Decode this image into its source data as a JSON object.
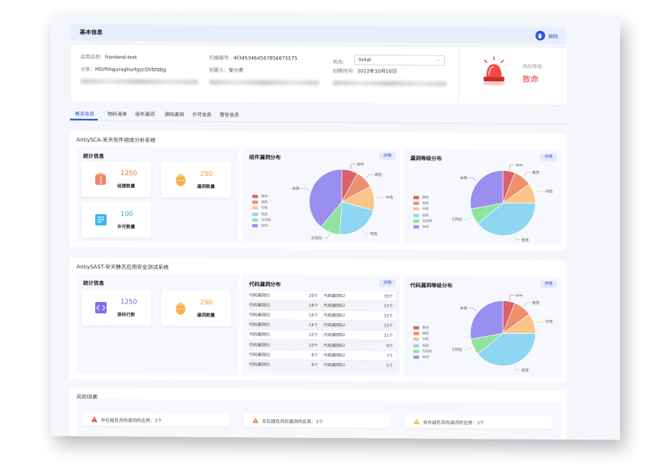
{
  "header": {
    "title": "基本信息",
    "delete_label": "删除"
  },
  "info": {
    "app_name_label": "应用名称:",
    "app_name": "frontend-test",
    "scan_id_label": "扫描编号:",
    "scan_id": "4f3453464567856875575",
    "status_label": "状态:",
    "status_value": "Inital",
    "branch_label": "分支:",
    "branch": "HD/fhhguraghurtgzcDVbfdbg",
    "creator_label": "创建人:",
    "creator": "安小虎",
    "created_at_label": "创建时间:",
    "created_at": "2022年10月10日",
    "risk_level_label": "风险等级:",
    "risk_level": "致命"
  },
  "tabs": [
    {
      "label": "概览信息",
      "active": true
    },
    {
      "label": "物料清单"
    },
    {
      "label": "组件漏洞"
    },
    {
      "label": "源码漏洞"
    },
    {
      "label": "许可信息"
    },
    {
      "label": "警告信息"
    }
  ],
  "sca": {
    "title": "AntiySCA-安天软件组成分析系统",
    "stats_title": "统计信息",
    "stats": [
      {
        "value": "1250",
        "label": "组建数量",
        "color": "#f5683e",
        "icon": "package-icon"
      },
      {
        "value": "290",
        "label": "漏洞数量",
        "color": "#f49a2b",
        "icon": "bug-icon"
      },
      {
        "value": "100",
        "label": "许可数量",
        "color": "#21a6e0",
        "icon": "license-icon"
      }
    ],
    "component_chart_title": "组件漏洞分布",
    "level_chart_title": "漏洞等级分布",
    "detail_label": "详情"
  },
  "sast": {
    "title": "AntiySAST-安天静态应用安全测试系统",
    "stats_title": "统计信息",
    "stats": [
      {
        "value": "1250",
        "label": "源码行数",
        "color": "#6a5ce6",
        "icon": "code-icon"
      },
      {
        "value": "290",
        "label": "漏洞数量",
        "color": "#f49a2b",
        "icon": "bug-icon"
      }
    ],
    "code_table_title": "代码漏洞分布",
    "level_chart_title": "代码漏洞等级分布",
    "detail_label": "详情",
    "table_left": [
      {
        "name": "代码漏洞01",
        "count": "20个"
      },
      {
        "name": "代码漏洞01",
        "count": "18个"
      },
      {
        "name": "代码漏洞01",
        "count": "16个"
      },
      {
        "name": "代码漏洞01",
        "count": "14个"
      },
      {
        "name": "代码漏洞01",
        "count": "12个"
      },
      {
        "name": "代码漏洞01",
        "count": "10个"
      },
      {
        "name": "代码漏洞01",
        "count": "8个"
      },
      {
        "name": "代码漏洞01",
        "count": "6个"
      }
    ],
    "table_right": [
      {
        "name": "代码漏洞02",
        "count": "19个"
      },
      {
        "name": "代码漏洞02",
        "count": "17个"
      },
      {
        "name": "代码漏洞02",
        "count": "15个"
      },
      {
        "name": "代码漏洞02",
        "count": "13个"
      },
      {
        "name": "代码漏洞02",
        "count": "11个"
      },
      {
        "name": "代码漏洞02",
        "count": "9个"
      },
      {
        "name": "代码漏洞02",
        "count": "7个"
      },
      {
        "name": "代码漏洞02",
        "count": "5个"
      }
    ]
  },
  "risk_factors": {
    "title": "风险因素",
    "items": [
      {
        "text": "存在超危风险漏洞的应用：3个",
        "color": "#e0413a"
      },
      {
        "text": "存在超危风险漏洞的应用：3个",
        "color": "#f07a3a"
      },
      {
        "text": "存在超危风险漏洞的应用：3个",
        "color": "#f5b82e"
      }
    ]
  },
  "chart_data": [
    {
      "type": "pie",
      "title": "组件漏洞分布",
      "categories": [
        "致命",
        "高危",
        "中危",
        "低危",
        "无风险",
        "未知"
      ],
      "values": [
        8,
        9,
        12,
        22,
        10,
        39
      ],
      "colors": [
        "#d9616b",
        "#ee8f6f",
        "#fbc589",
        "#8fd6f2",
        "#8ee39e",
        "#9a8ff0"
      ]
    },
    {
      "type": "pie",
      "title": "漏洞等级分布",
      "categories": [
        "致命",
        "高危",
        "中危",
        "低危",
        "无风险",
        "未知"
      ],
      "values": [
        6,
        9,
        10,
        39,
        8,
        28
      ],
      "colors": [
        "#d9616b",
        "#ee8f6f",
        "#fbc589",
        "#8fd6f2",
        "#8ee39e",
        "#9a8ff0"
      ]
    },
    {
      "type": "pie",
      "title": "代码漏洞等级分布",
      "categories": [
        "致命",
        "高危",
        "中危",
        "低危",
        "无风险",
        "未知"
      ],
      "values": [
        6,
        9,
        10,
        39,
        8,
        28
      ],
      "colors": [
        "#d9616b",
        "#ee8f6f",
        "#fbc589",
        "#8fd6f2",
        "#8ee39e",
        "#9a8ff0"
      ]
    }
  ]
}
